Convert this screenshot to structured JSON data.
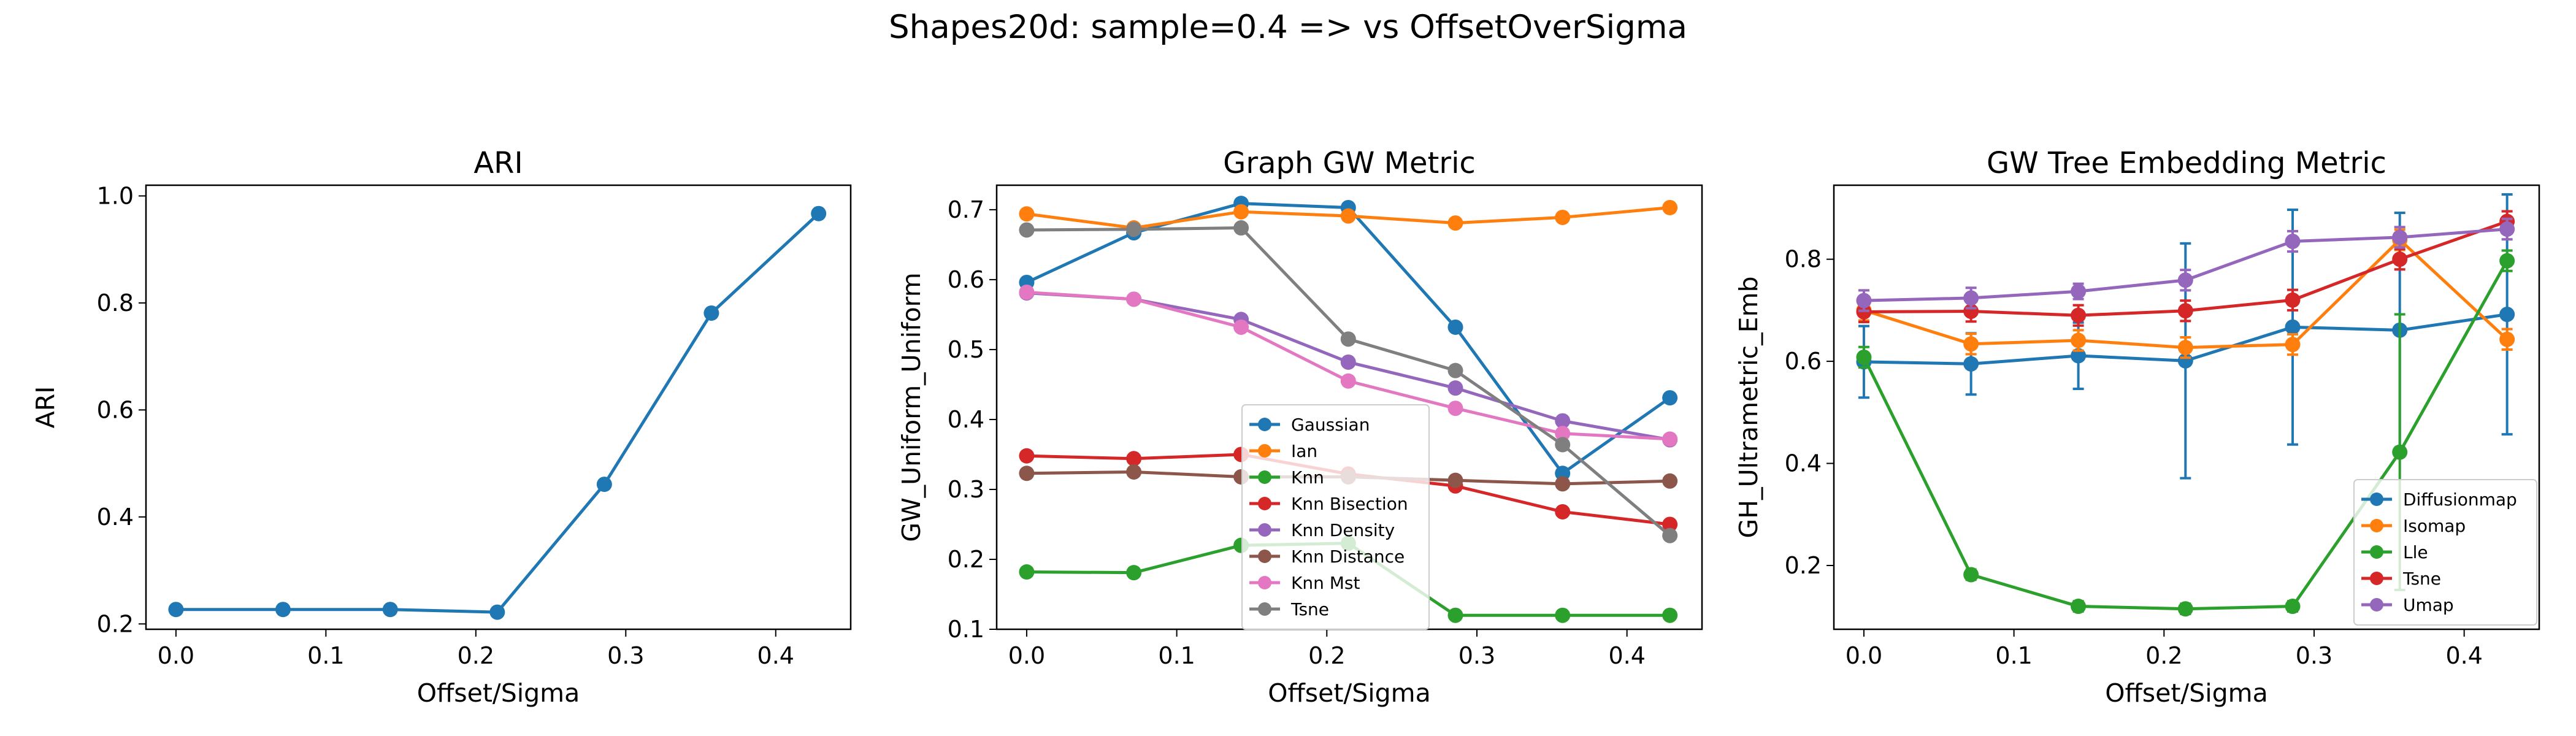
{
  "figure": {
    "suptitle": "Shapes20d: sample=0.4 => vs OffsetOverSigma"
  },
  "chart_data": [
    {
      "type": "line",
      "title": "ARI",
      "xlabel": "Offset/Sigma",
      "ylabel": "ARI",
      "xlim": [
        -0.02,
        0.45
      ],
      "ylim": [
        0.19,
        1.02
      ],
      "xticks": [
        0.0,
        0.1,
        0.2,
        0.3,
        0.4
      ],
      "xtick_labels": [
        "0.0",
        "0.1",
        "0.2",
        "0.3",
        "0.4"
      ],
      "yticks": [
        0.2,
        0.4,
        0.6,
        0.8,
        1.0
      ],
      "ytick_labels": [
        "0.2",
        "0.4",
        "0.6",
        "0.8",
        "1.0"
      ],
      "x": [
        0.0,
        0.0714,
        0.1429,
        0.2143,
        0.2857,
        0.3571,
        0.4286
      ],
      "legend": null,
      "series": [
        {
          "color": "#1f77b4",
          "values": [
            0.227,
            0.227,
            0.227,
            0.222,
            0.461,
            0.781,
            0.967
          ]
        }
      ]
    },
    {
      "type": "line",
      "title": "Graph GW Metric",
      "xlabel": "Offset/Sigma",
      "ylabel": "GW_Uniform_Uniform",
      "xlim": [
        -0.02,
        0.45
      ],
      "ylim": [
        0.1,
        0.735
      ],
      "xticks": [
        0.0,
        0.1,
        0.2,
        0.3,
        0.4
      ],
      "xtick_labels": [
        "0.0",
        "0.1",
        "0.2",
        "0.3",
        "0.4"
      ],
      "yticks": [
        0.1,
        0.2,
        0.3,
        0.4,
        0.5,
        0.6,
        0.7
      ],
      "ytick_labels": [
        "0.1",
        "0.2",
        "0.3",
        "0.4",
        "0.5",
        "0.6",
        "0.7"
      ],
      "x": [
        0.0,
        0.0714,
        0.1429,
        0.2143,
        0.2857,
        0.3571,
        0.4286
      ],
      "legend": "bottom-center",
      "series": [
        {
          "name": "Gaussian",
          "color": "#1f77b4",
          "values": [
            0.596,
            0.667,
            0.709,
            0.703,
            0.532,
            0.323,
            0.431
          ]
        },
        {
          "name": "Ian",
          "color": "#ff7f0e",
          "values": [
            0.694,
            0.674,
            0.697,
            0.691,
            0.681,
            0.689,
            0.703
          ]
        },
        {
          "name": "Knn",
          "color": "#2ca02c",
          "values": [
            0.182,
            0.181,
            0.22,
            0.223,
            0.12,
            0.12,
            0.12
          ]
        },
        {
          "name": "Knn Bisection",
          "color": "#d62728",
          "values": [
            0.348,
            0.344,
            0.35,
            0.322,
            0.305,
            0.268,
            0.25
          ]
        },
        {
          "name": "Knn Density",
          "color": "#9467bd",
          "values": [
            0.581,
            0.572,
            0.543,
            0.482,
            0.445,
            0.398,
            0.371
          ]
        },
        {
          "name": "Knn Distance",
          "color": "#8c564b",
          "values": [
            0.323,
            0.325,
            0.318,
            0.318,
            0.313,
            0.308,
            0.312
          ]
        },
        {
          "name": "Knn Mst",
          "color": "#e377c2",
          "values": [
            0.582,
            0.572,
            0.532,
            0.455,
            0.416,
            0.38,
            0.372
          ]
        },
        {
          "name": "Tsne",
          "color": "#7f7f7f",
          "values": [
            0.671,
            0.672,
            0.674,
            0.515,
            0.47,
            0.364,
            0.234
          ]
        }
      ]
    },
    {
      "type": "line",
      "title": "GW Tree Embedding Metric",
      "xlabel": "Offset/Sigma",
      "ylabel": "GH_Ultrametric_Emb",
      "xlim": [
        -0.02,
        0.45
      ],
      "ylim": [
        0.075,
        0.945
      ],
      "xticks": [
        0.0,
        0.1,
        0.2,
        0.3,
        0.4
      ],
      "xtick_labels": [
        "0.0",
        "0.1",
        "0.2",
        "0.3",
        "0.4"
      ],
      "yticks": [
        0.2,
        0.4,
        0.6,
        0.8
      ],
      "ytick_labels": [
        "0.2",
        "0.4",
        "0.6",
        "0.8"
      ],
      "x": [
        0.0,
        0.0714,
        0.1429,
        0.2143,
        0.2857,
        0.3571,
        0.4286
      ],
      "legend": "bottom-right",
      "series": [
        {
          "name": "Diffusionmap",
          "color": "#1f77b4",
          "values": [
            0.599,
            0.595,
            0.611,
            0.601,
            0.667,
            0.661,
            0.692
          ],
          "err": [
            0.07,
            0.06,
            0.065,
            0.23,
            0.23,
            0.23,
            0.235
          ]
        },
        {
          "name": "Isomap",
          "color": "#ff7f0e",
          "values": [
            0.7,
            0.634,
            0.641,
            0.627,
            0.633,
            0.838,
            0.643
          ],
          "err": [
            0.02,
            0.02,
            0.02,
            0.02,
            0.02,
            0.02,
            0.02
          ]
        },
        {
          "name": "Lle",
          "color": "#2ca02c",
          "values": [
            0.608,
            0.182,
            0.12,
            0.115,
            0.12,
            0.422,
            0.797
          ],
          "err": [
            0.02,
            0.01,
            0.01,
            0.01,
            0.01,
            0.27,
            0.02
          ]
        },
        {
          "name": "Tsne",
          "color": "#d62728",
          "values": [
            0.697,
            0.698,
            0.69,
            0.699,
            0.72,
            0.8,
            0.874
          ],
          "err": [
            0.02,
            0.02,
            0.02,
            0.02,
            0.02,
            0.02,
            0.02
          ]
        },
        {
          "name": "Umap",
          "color": "#9467bd",
          "values": [
            0.719,
            0.724,
            0.737,
            0.759,
            0.835,
            0.843,
            0.859
          ],
          "err": [
            0.02,
            0.02,
            0.015,
            0.02,
            0.02,
            0.02,
            0.02
          ]
        }
      ]
    }
  ]
}
